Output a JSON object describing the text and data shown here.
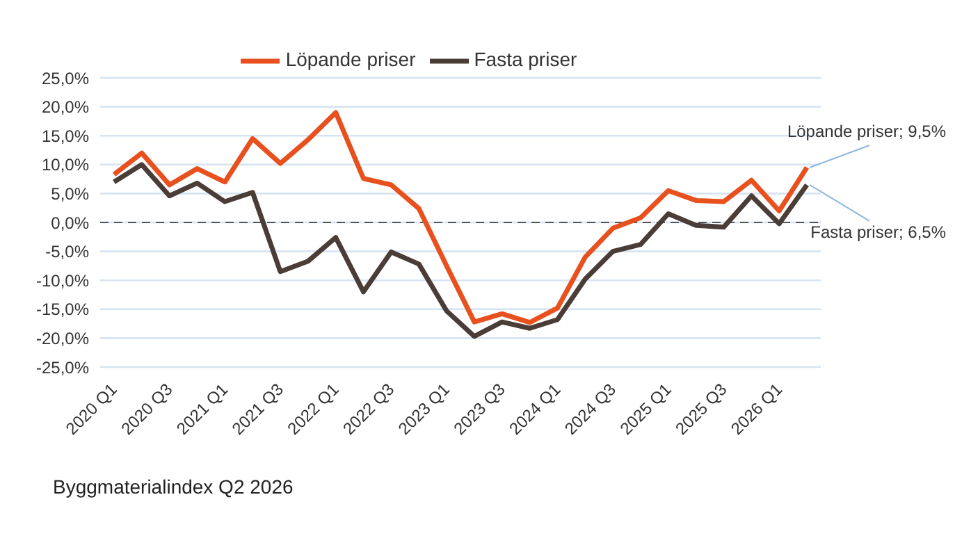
{
  "chart_data": {
    "type": "line",
    "categories": [
      "2020 Q1",
      null,
      "2020 Q3",
      null,
      "2021 Q1",
      null,
      "2021 Q3",
      null,
      "2022 Q1",
      null,
      "2022 Q3",
      null,
      "2023 Q1",
      null,
      "2023 Q3",
      null,
      "2024 Q1",
      null,
      "2024 Q3",
      null,
      "2025 Q1",
      null,
      "2025 Q3",
      null,
      "2026 Q1",
      null
    ],
    "series": [
      {
        "name": "Löpande priser",
        "color": "#e8501e",
        "values": [
          8.3,
          12,
          6.5,
          9.3,
          7,
          14.5,
          10.2,
          14.3,
          19,
          7.6,
          6.5,
          2.4,
          -7.5,
          -17.2,
          -15.8,
          -17.3,
          -14.8,
          -6,
          -1,
          0.8,
          5.5,
          3.8,
          3.6,
          7.3,
          2,
          9.5
        ],
        "value_labels": [
          null,
          null,
          null,
          null,
          null,
          null,
          null,
          null,
          null,
          null,
          null,
          null,
          null,
          null,
          null,
          null,
          null,
          null,
          null,
          null,
          null,
          null,
          null,
          null,
          null,
          "Löpande priser; 9,5%"
        ]
      },
      {
        "name": "Fasta priser",
        "color": "#4a3c36",
        "values": [
          7,
          10,
          4.6,
          6.8,
          3.6,
          5.2,
          -8.5,
          -6.7,
          -2.6,
          -12,
          -5.1,
          -7.2,
          -15.3,
          -19.7,
          -17.2,
          -18.3,
          -16.8,
          -9.8,
          -5,
          -3.8,
          1.5,
          -0.5,
          -0.8,
          4.6,
          -0.2,
          6.5
        ],
        "value_labels": [
          null,
          null,
          null,
          null,
          null,
          null,
          null,
          null,
          null,
          null,
          null,
          null,
          null,
          null,
          null,
          null,
          null,
          null,
          null,
          null,
          null,
          null,
          null,
          null,
          null,
          "Fasta priser; 6,5%"
        ]
      }
    ],
    "ylim": [
      -25,
      25
    ],
    "yticks": [
      {
        "value": -25,
        "label": "-25,0%"
      },
      {
        "value": -20,
        "label": "-20,0%"
      },
      {
        "value": -15,
        "label": "-15,0%"
      },
      {
        "value": -10,
        "label": "-10,0%"
      },
      {
        "value": -5,
        "label": "-5,0%"
      },
      {
        "value": 0,
        "label": "0,0%"
      },
      {
        "value": 5,
        "label": "5,0%"
      },
      {
        "value": 10,
        "label": "10,0%"
      },
      {
        "value": 15,
        "label": "15,0%"
      },
      {
        "value": 20,
        "label": "20,0%"
      },
      {
        "value": 25,
        "label": "25,0%"
      }
    ],
    "ref_lines": [
      {
        "axis": "y",
        "value": 0,
        "color": "#555555",
        "line_style": "dashed"
      }
    ],
    "grid": "y",
    "legend": "top",
    "marker": "none",
    "line_style": "solid",
    "annotations": [
      "Byggmaterialindex Q2 2026"
    ]
  }
}
